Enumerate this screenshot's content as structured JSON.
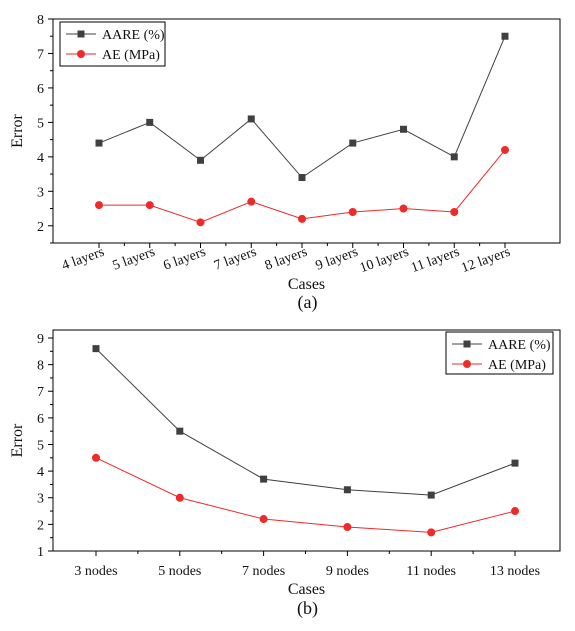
{
  "chart_data": [
    {
      "type": "line",
      "categories": [
        "4 layers",
        "5 layers",
        "6 layers",
        "7 layers",
        "8 layers",
        "9 layers",
        "10 layers",
        "11 layers",
        "12 layers"
      ],
      "series": [
        {
          "name": "AARE (%)",
          "values": [
            4.4,
            5.0,
            3.9,
            5.1,
            3.4,
            4.4,
            4.8,
            4.0,
            7.5
          ],
          "color": "#404040",
          "marker": "square"
        },
        {
          "name": "AE (MPa)",
          "values": [
            2.6,
            2.6,
            2.1,
            2.7,
            2.2,
            2.4,
            2.5,
            2.4,
            4.2
          ],
          "color": "#ee2a2a",
          "marker": "circle"
        }
      ],
      "xlabel": "Cases",
      "ylabel": "Error",
      "ylim": [
        1.5,
        8
      ],
      "yticks": [
        2,
        3,
        4,
        5,
        6,
        7,
        8
      ],
      "panel_label": "(a)",
      "legend_position": "top-left",
      "grid": false,
      "x_tick_rotation": "rotated"
    },
    {
      "type": "line",
      "categories": [
        "3 nodes",
        "5 nodes",
        "7 nodes",
        "9 nodes",
        "11 nodes",
        "13 nodes"
      ],
      "series": [
        {
          "name": "AARE (%)",
          "values": [
            8.6,
            5.5,
            3.7,
            3.3,
            3.1,
            4.3
          ],
          "color": "#404040",
          "marker": "square"
        },
        {
          "name": "AE (MPa)",
          "values": [
            4.5,
            3.0,
            2.2,
            1.9,
            1.7,
            2.5
          ],
          "color": "#ee2a2a",
          "marker": "circle"
        }
      ],
      "xlabel": "Cases",
      "ylabel": "Error",
      "ylim": [
        1,
        9.3
      ],
      "yticks": [
        1,
        2,
        3,
        4,
        5,
        6,
        7,
        8,
        9
      ],
      "panel_label": "(b)",
      "legend_position": "top-right",
      "grid": false,
      "x_tick_rotation": "horizontal"
    }
  ]
}
